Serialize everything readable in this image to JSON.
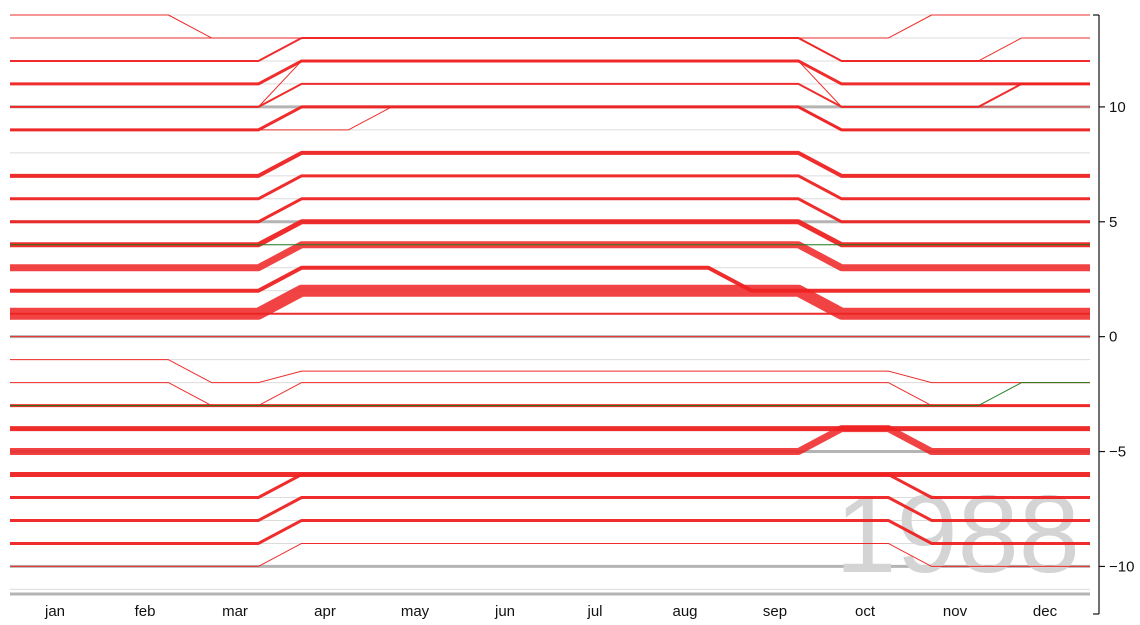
{
  "chart_data": {
    "type": "line",
    "title": "",
    "watermark": "1988",
    "xlabel": "",
    "ylabel": "",
    "x": [
      "jan",
      "feb",
      "mar",
      "apr",
      "may",
      "jun",
      "jul",
      "aug",
      "sep",
      "oct",
      "nov",
      "dec"
    ],
    "y_ticks": [
      10,
      5,
      0,
      -5,
      -10
    ],
    "y_tick_labels": [
      "10",
      "5",
      "0",
      "−5",
      "−10"
    ],
    "ylim": [
      -11.2,
      14
    ],
    "y_axis_position": "right",
    "grid": true,
    "legend": "none",
    "colors": {
      "red": "#ee2222",
      "green": "#1a7a1a",
      "gray": "#b4b4b4",
      "watermark": "#d4d4d4"
    },
    "series": [
      {
        "color": "red",
        "weight": 1,
        "values": [
          14,
          14,
          13,
          13,
          13,
          13,
          13,
          13,
          13,
          13,
          14,
          14
        ]
      },
      {
        "color": "red",
        "weight": 1,
        "values": [
          13,
          13,
          13,
          13,
          13,
          13,
          13,
          13,
          13,
          12,
          12,
          13
        ]
      },
      {
        "color": "red",
        "weight": 2,
        "values": [
          12,
          12,
          12,
          13,
          13,
          13,
          13,
          13,
          13,
          12,
          12,
          12
        ]
      },
      {
        "color": "red",
        "weight": 3,
        "values": [
          11,
          11,
          11,
          12,
          12,
          12,
          12,
          12,
          12,
          11,
          11,
          11
        ]
      },
      {
        "color": "red",
        "weight": 1,
        "values": [
          10,
          10,
          10,
          12,
          12,
          12,
          12,
          12,
          12,
          10,
          10,
          10
        ]
      },
      {
        "color": "red",
        "weight": 2,
        "values": [
          10,
          10,
          10,
          11,
          11,
          11,
          11,
          11,
          11,
          10,
          10,
          11
        ]
      },
      {
        "color": "red",
        "weight": 3,
        "values": [
          9,
          9,
          9,
          10,
          10,
          10,
          10,
          10,
          10,
          9,
          9,
          9
        ]
      },
      {
        "color": "red",
        "weight": 1,
        "values": [
          9,
          9,
          9,
          9,
          10,
          10,
          10,
          10,
          10,
          9,
          9,
          9
        ]
      },
      {
        "color": "red",
        "weight": 4,
        "values": [
          7,
          7,
          7,
          8,
          8,
          8,
          8,
          8,
          8,
          7,
          7,
          7
        ]
      },
      {
        "color": "red",
        "weight": 3,
        "values": [
          6,
          6,
          6,
          7,
          7,
          7,
          7,
          7,
          7,
          6,
          6,
          6
        ]
      },
      {
        "color": "red",
        "weight": 3,
        "values": [
          5,
          5,
          5,
          6,
          6,
          6,
          6,
          6,
          6,
          5,
          5,
          5
        ]
      },
      {
        "color": "red",
        "weight": 5,
        "values": [
          4,
          4,
          4,
          5,
          5,
          5,
          5,
          5,
          5,
          4,
          4,
          4
        ]
      },
      {
        "color": "red",
        "weight": 7,
        "values": [
          3,
          3,
          3,
          4,
          4,
          4,
          4,
          4,
          4,
          3,
          3,
          3
        ]
      },
      {
        "color": "red",
        "weight": 4,
        "values": [
          2,
          2,
          2,
          3,
          3,
          3,
          3,
          3,
          2,
          2,
          2,
          2
        ]
      },
      {
        "color": "red",
        "weight": 12,
        "values": [
          1,
          1,
          1,
          2,
          2,
          2,
          2,
          2,
          2,
          1,
          1,
          1
        ]
      },
      {
        "color": "red",
        "weight": 2,
        "values": [
          1,
          1,
          1,
          1,
          1,
          1,
          1,
          1,
          1,
          1,
          1,
          1
        ]
      },
      {
        "color": "red",
        "weight": 1,
        "values": [
          0,
          0,
          0,
          0,
          0,
          0,
          0,
          0,
          0,
          0,
          0,
          0
        ]
      },
      {
        "color": "red",
        "weight": 1,
        "values": [
          -1,
          -1,
          -2,
          -1.5,
          -1.5,
          -1.5,
          -1.5,
          -1.5,
          -1.5,
          -1.5,
          -2,
          -2
        ]
      },
      {
        "color": "red",
        "weight": 1,
        "values": [
          -2,
          -2,
          -3,
          -2,
          -2,
          -2,
          -2,
          -2,
          -2,
          -2,
          -3,
          -3
        ]
      },
      {
        "color": "red",
        "weight": 3,
        "values": [
          -3,
          -3,
          -3,
          -3,
          -3,
          -3,
          -3,
          -3,
          -3,
          -3,
          -3,
          -3
        ]
      },
      {
        "color": "red",
        "weight": 5,
        "values": [
          -4,
          -4,
          -4,
          -4,
          -4,
          -4,
          -4,
          -4,
          -4,
          -4,
          -4,
          -4
        ]
      },
      {
        "color": "red",
        "weight": 7,
        "values": [
          -5,
          -5,
          -5,
          -5,
          -5,
          -5,
          -5,
          -5,
          -5,
          -4,
          -5,
          -5
        ]
      },
      {
        "color": "red",
        "weight": 5,
        "values": [
          -6,
          -6,
          -6,
          -6,
          -6,
          -6,
          -6,
          -6,
          -6,
          -6,
          -6,
          -6
        ]
      },
      {
        "color": "red",
        "weight": 3,
        "values": [
          -7,
          -7,
          -7,
          -6,
          -6,
          -6,
          -6,
          -6,
          -6,
          -6,
          -7,
          -7
        ]
      },
      {
        "color": "red",
        "weight": 3,
        "values": [
          -8,
          -8,
          -8,
          -7,
          -7,
          -7,
          -7,
          -7,
          -7,
          -7,
          -8,
          -8
        ]
      },
      {
        "color": "red",
        "weight": 3,
        "values": [
          -9,
          -9,
          -9,
          -8,
          -8,
          -8,
          -8,
          -8,
          -8,
          -8,
          -9,
          -9
        ]
      },
      {
        "color": "red",
        "weight": 1,
        "values": [
          -10,
          -10,
          -10,
          -9,
          -9,
          -9,
          -9,
          -9,
          -9,
          -9,
          -10,
          -10
        ]
      },
      {
        "color": "green",
        "weight": 1,
        "values": [
          4,
          4,
          4,
          4,
          4,
          4,
          4,
          4,
          4,
          4,
          4,
          4
        ]
      },
      {
        "color": "green",
        "weight": 1,
        "values": [
          -3,
          -3,
          -3,
          -3,
          -3,
          -3,
          -3,
          -3,
          -3,
          -3,
          -3,
          -2
        ]
      }
    ]
  }
}
